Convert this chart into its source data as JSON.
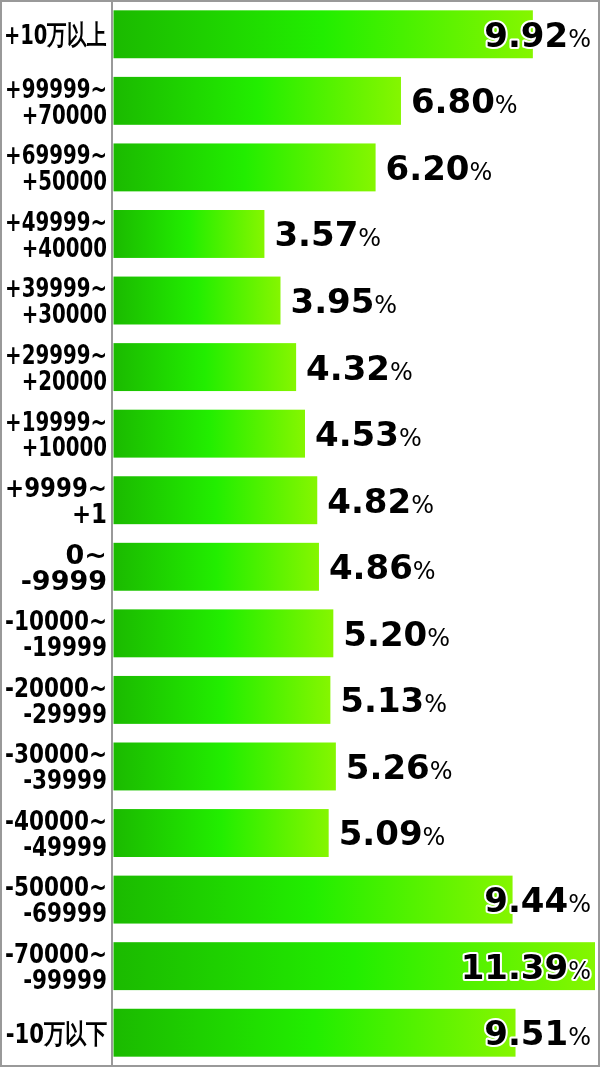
{
  "chart_data": {
    "type": "bar",
    "orientation": "horizontal",
    "categories": [
      "+10万以上",
      "+99999~\n+70000",
      "+69999~\n+50000",
      "+49999~\n+40000",
      "+39999~\n+30000",
      "+29999~\n+20000",
      "+19999~\n+10000",
      "+9999~\n+1",
      "0~\n-9999",
      "-10000~\n-19999",
      "-20000~\n-29999",
      "-30000~\n-39999",
      "-40000~\n-49999",
      "-50000~\n-69999",
      "-70000~\n-99999",
      "-10万以下"
    ],
    "values": [
      9.92,
      6.8,
      6.2,
      3.57,
      3.95,
      4.32,
      4.53,
      4.82,
      4.86,
      5.2,
      5.13,
      5.26,
      5.09,
      9.44,
      11.39,
      9.51
    ],
    "value_labels": [
      "9.92%",
      "6.80%",
      "6.20%",
      "3.57%",
      "3.95%",
      "4.32%",
      "4.53%",
      "4.82%",
      "4.86%",
      "5.20%",
      "5.13%",
      "5.26%",
      "5.09%",
      "9.44%",
      "11.39%",
      "9.51%"
    ],
    "color": "#22ee00"
  }
}
